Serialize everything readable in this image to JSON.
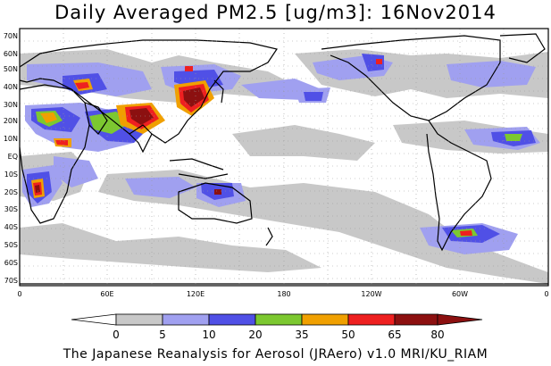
{
  "title": "Daily Averaged PM2.5 [ug/m3]: 16Nov2014",
  "credit": "The Japanese Reanalysis for Aerosol (JRAero) v1.0 MRI/KU_RIAM",
  "lat_labels": [
    "70N",
    "60N",
    "50N",
    "40N",
    "30N",
    "20N",
    "10N",
    "EQ",
    "10S",
    "20S",
    "30S",
    "40S",
    "50S",
    "60S",
    "70S"
  ],
  "lon_labels": [
    "0",
    "60E",
    "120E",
    "180",
    "120W",
    "60W",
    "0"
  ],
  "colorbar": {
    "ticks": [
      "0",
      "5",
      "10",
      "20",
      "35",
      "50",
      "65",
      "80"
    ],
    "colors": [
      "#ffffff",
      "#c8c8c8",
      "#a0a0f0",
      "#5050e6",
      "#7cc830",
      "#f0a000",
      "#ee2020",
      "#8c1010"
    ]
  },
  "colors": {
    "land_outline": "#000000",
    "ocean": "#ffffff",
    "level_5": "#c8c8c8",
    "level_10": "#a0a0f0",
    "level_20": "#5050e6",
    "level_35": "#7cc830",
    "level_50": "#f0a000",
    "level_65": "#ee2020",
    "level_80": "#8c1010"
  }
}
